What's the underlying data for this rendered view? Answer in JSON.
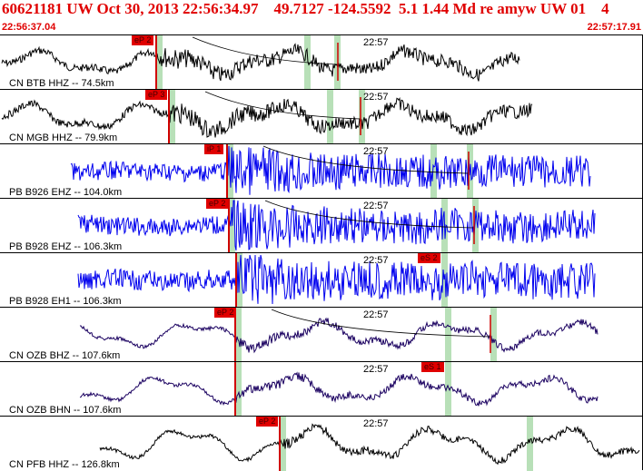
{
  "header": {
    "title": "60621181 UW Oct 30, 2013 22:56:34.97    49.7127 -124.5592  5.1 1.44 Md re amyw UW 01    4",
    "time_start": "22:56:37.04",
    "time_end": "22:57:17.91"
  },
  "colors": {
    "header_text": "#e00000",
    "pick_box": "#e00000",
    "green_marker": "#b8e0b8",
    "trace_black": "#000000",
    "trace_blue": "#0000ee",
    "trace_purple": "#1a0060"
  },
  "panels": [
    {
      "station": "CN BTB HHZ -- 74.5km",
      "tick": "22:57",
      "pick": "eP 2",
      "s_pick": "",
      "color": "black"
    },
    {
      "station": "CN MGB HHZ -- 79.9km",
      "tick": "22:57",
      "pick": "eP 3",
      "s_pick": "",
      "color": "black"
    },
    {
      "station": "PB B926 EHZ -- 104.0km",
      "tick": "22:57",
      "pick": "iP 1",
      "s_pick": "",
      "color": "blue"
    },
    {
      "station": "PB B928 EHZ -- 106.3km",
      "tick": "22:57",
      "pick": "eP 2",
      "s_pick": "",
      "color": "blue"
    },
    {
      "station": "PB B928 EH1 -- 106.3km",
      "tick": "22:57",
      "pick": "",
      "s_pick": "eS 2",
      "color": "blue"
    },
    {
      "station": "CN OZB BHZ -- 107.6km",
      "tick": "22:57",
      "pick": "eP 2",
      "s_pick": "",
      "color": "purple"
    },
    {
      "station": "CN OZB BHN -- 107.6km",
      "tick": "22:57",
      "pick": "",
      "s_pick": "eS 1",
      "color": "purple"
    },
    {
      "station": "CN PFB HHZ -- 126.8km",
      "tick": "22:57",
      "pick": "eP 2",
      "s_pick": "",
      "color": "black"
    }
  ]
}
